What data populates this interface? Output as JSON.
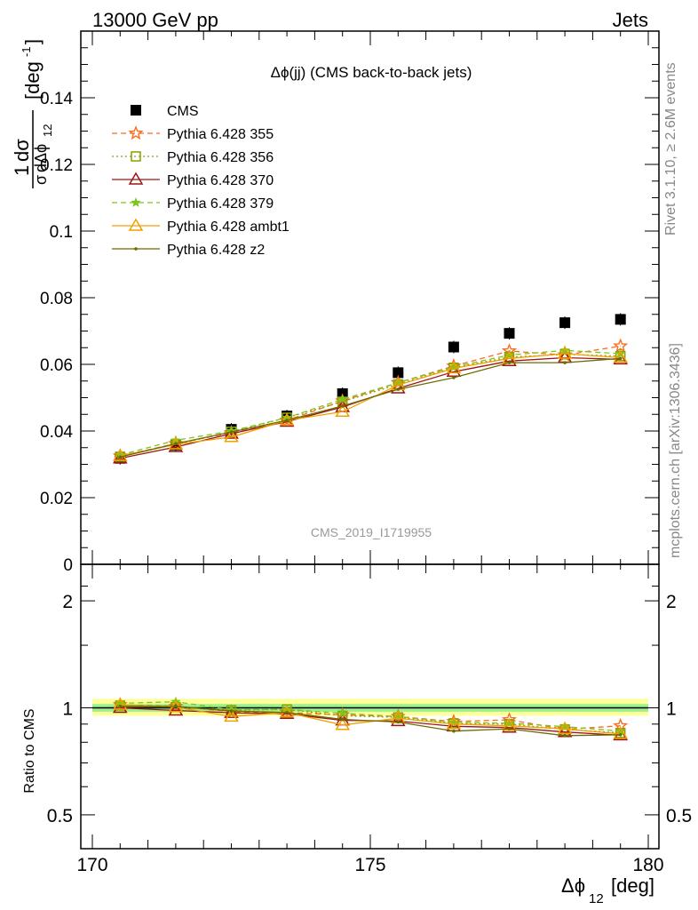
{
  "header": {
    "left": "13000 GeV pp",
    "right": "Jets"
  },
  "side_labels": {
    "rivet": "Rivet 3.1.10, ≥ 2.6M events",
    "mcplots": "mcplots.cern.ch [arXiv:1306.3436]"
  },
  "chart_data": [
    {
      "type": "scatter",
      "title": "Δϕ(jj) (CMS back-to-back jets)",
      "watermark": "CMS_2019_I1719955",
      "ylabel": "1/σ dσ/dΔϕ_12 [deg^-1]",
      "xlim": [
        170,
        180
      ],
      "ylim": [
        0,
        0.16
      ],
      "yticks": [
        "0",
        "0.02",
        "0.04",
        "0.06",
        "0.08",
        "0.1",
        "0.12",
        "0.14"
      ],
      "x": [
        170.5,
        171.5,
        172.5,
        173.5,
        174.5,
        175.5,
        176.5,
        177.5,
        178.5,
        179.5
      ],
      "legend_position": "top-left",
      "series": [
        {
          "name": "CMS",
          "color": "#000000",
          "marker": "square-filled",
          "line": "none",
          "values": [
            0.0318,
            0.0358,
            0.0405,
            0.0445,
            0.0512,
            0.0575,
            0.0652,
            0.0693,
            0.0725,
            0.0735
          ]
        },
        {
          "name": "Pythia 6.428 355",
          "color": "#ff6a1f",
          "marker": "star-open",
          "line": "dashed",
          "values": [
            0.0325,
            0.0362,
            0.0395,
            0.0432,
            0.049,
            0.0545,
            0.0595,
            0.064,
            0.0628,
            0.0655
          ]
        },
        {
          "name": "Pythia 6.428 356",
          "color": "#8aa000",
          "marker": "square-open",
          "line": "dotted",
          "values": [
            0.0323,
            0.036,
            0.0398,
            0.044,
            0.0488,
            0.054,
            0.059,
            0.0622,
            0.063,
            0.0625
          ]
        },
        {
          "name": "Pythia 6.428 370",
          "color": "#9e1515",
          "marker": "triangle-open",
          "line": "solid",
          "values": [
            0.0318,
            0.0352,
            0.0392,
            0.0428,
            0.0472,
            0.0528,
            0.0578,
            0.061,
            0.062,
            0.0615
          ]
        },
        {
          "name": "Pythia 6.428 379",
          "color": "#7dc41e",
          "marker": "star-filled",
          "line": "dashed",
          "values": [
            0.0328,
            0.0372,
            0.04,
            0.044,
            0.0495,
            0.0545,
            0.0592,
            0.0628,
            0.0642,
            0.0632
          ]
        },
        {
          "name": "Pythia 6.428 ambt1",
          "color": "#f0a000",
          "marker": "triangle-open",
          "line": "solid",
          "values": [
            0.0325,
            0.036,
            0.0382,
            0.0432,
            0.0458,
            0.0538,
            0.0588,
            0.0618,
            0.0632,
            0.062
          ]
        },
        {
          "name": "Pythia 6.428 z2",
          "color": "#6b6b00",
          "marker": "dot",
          "line": "solid",
          "values": [
            0.0322,
            0.0362,
            0.0397,
            0.0432,
            0.0475,
            0.0525,
            0.056,
            0.0605,
            0.0605,
            0.0618
          ]
        }
      ]
    },
    {
      "type": "line",
      "ylabel": "Ratio to CMS",
      "xlabel": "Δϕ_12 [deg]",
      "xlim": [
        170,
        180
      ],
      "xticks": [
        "170",
        "175",
        "180"
      ],
      "ylim": [
        0.37,
        2.3
      ],
      "yticks": [
        "0.5",
        "1",
        "2"
      ],
      "y_scale": "log",
      "reference_line": 1,
      "band_inner": [
        0.975,
        1.025
      ],
      "band_outer": [
        0.95,
        1.06
      ],
      "x": [
        170.5,
        171.5,
        172.5,
        173.5,
        174.5,
        175.5,
        176.5,
        177.5,
        178.5,
        179.5
      ],
      "series": [
        {
          "name": "Pythia 6.428 355",
          "values": [
            1.02,
            1.01,
            0.975,
            0.97,
            0.955,
            0.945,
            0.915,
            0.925,
            0.87,
            0.89
          ]
        },
        {
          "name": "Pythia 6.428 356",
          "values": [
            1.015,
            1.005,
            0.985,
            0.99,
            0.95,
            0.94,
            0.905,
            0.9,
            0.87,
            0.85
          ]
        },
        {
          "name": "Pythia 6.428 370",
          "values": [
            1.0,
            0.983,
            0.968,
            0.962,
            0.922,
            0.918,
            0.887,
            0.88,
            0.855,
            0.837
          ]
        },
        {
          "name": "Pythia 6.428 379",
          "values": [
            1.03,
            1.04,
            0.988,
            0.99,
            0.965,
            0.945,
            0.91,
            0.905,
            0.885,
            0.86
          ]
        },
        {
          "name": "Pythia 6.428 ambt1",
          "values": [
            1.02,
            1.005,
            0.945,
            0.97,
            0.895,
            0.935,
            0.9,
            0.89,
            0.872,
            0.845
          ]
        },
        {
          "name": "Pythia 6.428 z2",
          "values": [
            1.01,
            1.01,
            0.98,
            0.97,
            0.928,
            0.912,
            0.86,
            0.873,
            0.835,
            0.84
          ]
        }
      ]
    }
  ]
}
